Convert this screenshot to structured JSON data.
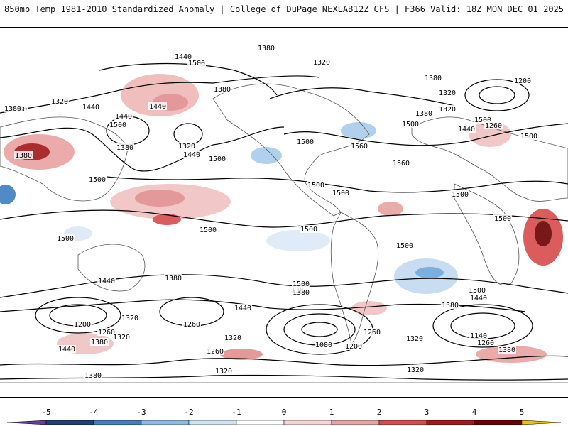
{
  "header": {
    "left": "850mb Temp 1981-2010 Standardized Anomaly | College of DuPage NEXLAB",
    "right": "12Z GFS | F366 Valid: 18Z MON DEC 01 2025"
  },
  "map": {
    "contours": [
      {
        "label": "1380"
      },
      {
        "label": "1440"
      },
      {
        "label": "1500"
      },
      {
        "label": "1320"
      },
      {
        "label": "1380"
      },
      {
        "label": "1320"
      },
      {
        "label": "1380"
      },
      {
        "label": "1440"
      },
      {
        "label": "1380"
      },
      {
        "label": "1440"
      },
      {
        "label": "1320"
      },
      {
        "label": "1380"
      },
      {
        "label": "1440"
      },
      {
        "label": "1500"
      },
      {
        "label": "1500"
      },
      {
        "label": "1560"
      },
      {
        "label": "1560"
      },
      {
        "label": "1500"
      },
      {
        "label": "1440"
      },
      {
        "label": "1380"
      },
      {
        "label": "1320"
      },
      {
        "label": "1380"
      },
      {
        "label": "1200"
      },
      {
        "label": "1260"
      },
      {
        "label": "1320"
      },
      {
        "label": "1380"
      },
      {
        "label": "1440"
      },
      {
        "label": "1500"
      },
      {
        "label": "1500"
      },
      {
        "label": "1500"
      },
      {
        "label": "1500"
      },
      {
        "label": "1500"
      },
      {
        "label": "1500"
      },
      {
        "label": "1500"
      },
      {
        "label": "1500"
      },
      {
        "label": "1500"
      },
      {
        "label": "1500"
      },
      {
        "label": "1500"
      },
      {
        "label": "1440"
      },
      {
        "label": "1380"
      },
      {
        "label": "1320"
      },
      {
        "label": "1200"
      },
      {
        "label": "1260"
      },
      {
        "label": "1380"
      },
      {
        "label": "1320"
      },
      {
        "label": "1440"
      },
      {
        "label": "1380"
      },
      {
        "label": "1260"
      },
      {
        "label": "1260"
      },
      {
        "label": "1440"
      },
      {
        "label": "1500"
      },
      {
        "label": "1380"
      },
      {
        "label": "1320"
      },
      {
        "label": "1080"
      },
      {
        "label": "1200"
      },
      {
        "label": "1260"
      },
      {
        "label": "1320"
      },
      {
        "label": "1500"
      },
      {
        "label": "1440"
      },
      {
        "label": "1380"
      },
      {
        "label": "1140"
      },
      {
        "label": "1260"
      },
      {
        "label": "1380"
      },
      {
        "label": "1320"
      },
      {
        "label": "1320"
      },
      {
        "label": "1380"
      },
      {
        "label": "1500"
      }
    ]
  },
  "colorbar": {
    "ticks": [
      "-5",
      "-4",
      "-3",
      "-2",
      "-1",
      "0",
      "1",
      "2",
      "3",
      "4",
      "5"
    ],
    "colors": [
      "#6a3d9a",
      "#1f3f7a",
      "#3f7fc2",
      "#8db9e3",
      "#cfe3f4",
      "#ffffff",
      "#f6d4d4",
      "#e9a2a2",
      "#d64b4b",
      "#a31818",
      "#6b0000",
      "#f2c200"
    ]
  }
}
